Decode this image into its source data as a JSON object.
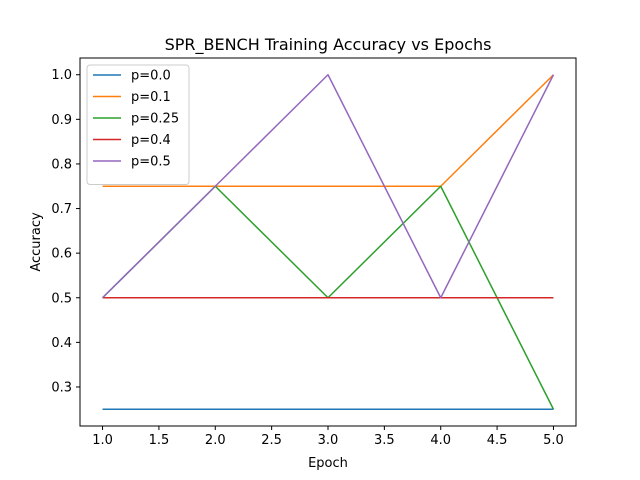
{
  "chart_data": {
    "type": "line",
    "title": "SPR_BENCH Training Accuracy vs Epochs",
    "xlabel": "Epoch",
    "ylabel": "Accuracy",
    "x": [
      1,
      2,
      3,
      4,
      5
    ],
    "xlim": [
      0.8,
      5.2
    ],
    "ylim": [
      0.2125,
      1.0375
    ],
    "xticks": [
      "1.0",
      "1.5",
      "2.0",
      "2.5",
      "3.0",
      "3.5",
      "4.0",
      "4.5",
      "5.0"
    ],
    "yticks": [
      "0.3",
      "0.4",
      "0.5",
      "0.6",
      "0.7",
      "0.8",
      "0.9",
      "1.0"
    ],
    "grid": false,
    "legend_position": "top-left",
    "series": [
      {
        "name": "p=0.0",
        "color": "#1f77b4",
        "values": [
          0.25,
          0.25,
          0.25,
          0.25,
          0.25
        ]
      },
      {
        "name": "p=0.1",
        "color": "#ff7f0e",
        "values": [
          0.75,
          0.75,
          0.75,
          0.75,
          1.0
        ]
      },
      {
        "name": "p=0.25",
        "color": "#2ca02c",
        "values": [
          0.5,
          0.75,
          0.5,
          0.75,
          0.25
        ]
      },
      {
        "name": "p=0.4",
        "color": "#d62728",
        "values": [
          0.5,
          0.5,
          0.5,
          0.5,
          0.5
        ]
      },
      {
        "name": "p=0.5",
        "color": "#9467bd",
        "values": [
          0.5,
          0.75,
          1.0,
          0.5,
          1.0
        ]
      }
    ]
  }
}
